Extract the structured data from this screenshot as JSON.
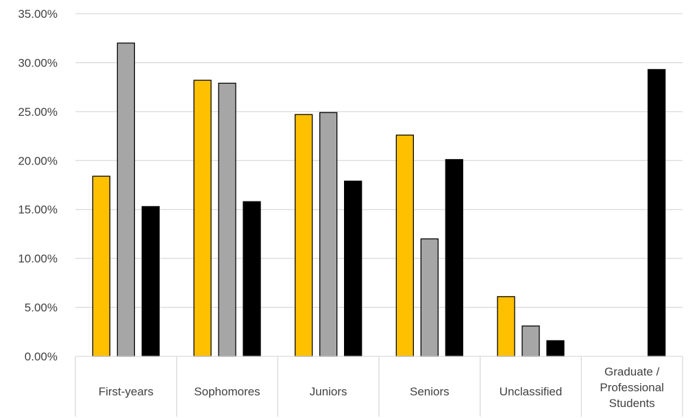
{
  "chart_data": {
    "type": "bar",
    "title": "",
    "xlabel": "",
    "ylabel": "",
    "ylim": [
      0,
      0.35
    ],
    "yticks": [
      "0.00%",
      "5.00%",
      "10.00%",
      "15.00%",
      "20.00%",
      "25.00%",
      "30.00%",
      "35.00%"
    ],
    "grid": true,
    "legend": "none",
    "categories": [
      [
        "First-years"
      ],
      [
        "Sophomores"
      ],
      [
        "Juniors"
      ],
      [
        "Seniors"
      ],
      [
        "Unclassified"
      ],
      [
        "Graduate /",
        "Professional",
        "Students"
      ]
    ],
    "series": [
      {
        "color": "#FFC000",
        "values": [
          0.184,
          0.282,
          0.247,
          0.226,
          0.061,
          null
        ]
      },
      {
        "color": "#A6A6A6",
        "values": [
          0.32,
          0.279,
          0.249,
          0.12,
          0.031,
          null
        ]
      },
      {
        "color": "#000000",
        "values": [
          0.153,
          0.158,
          0.179,
          0.201,
          0.016,
          0.293
        ]
      }
    ]
  }
}
